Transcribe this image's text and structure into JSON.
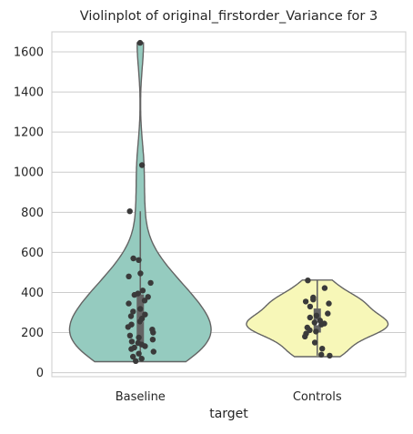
{
  "chart_data": {
    "type": "violin",
    "title": "Violinplot of original_firstorder_Variance for 3",
    "xlabel": "target",
    "ylabel": "",
    "ylim": [
      -20,
      1700
    ],
    "yticks": [
      0,
      200,
      400,
      600,
      800,
      1000,
      1200,
      1400,
      1600
    ],
    "grid": "horizontal",
    "categories": [
      "Baseline",
      "Controls"
    ],
    "series": [
      {
        "category": "Baseline",
        "color": "#95cbbf",
        "points": [
          1645,
          1035,
          805,
          570,
          562,
          495,
          480,
          448,
          410,
          395,
          388,
          378,
          360,
          345,
          318,
          305,
          290,
          282,
          270,
          255,
          240,
          228,
          215,
          200,
          185,
          175,
          165,
          155,
          148,
          140,
          132,
          125,
          118,
          105,
          95,
          80,
          70,
          58
        ],
        "q1": 140,
        "median": 255,
        "q3": 390,
        "whisker_low": 55,
        "whisker_high": 805,
        "min": 55,
        "max": 1645
      },
      {
        "category": "Controls",
        "color": "#f7f7b8",
        "points": [
          460,
          422,
          375,
          365,
          355,
          345,
          330,
          295,
          285,
          275,
          260,
          250,
          245,
          240,
          225,
          212,
          205,
          195,
          180,
          150,
          120,
          90,
          85
        ],
        "q1": 200,
        "median": 250,
        "q3": 320,
        "whisker_low": 85,
        "whisker_high": 460,
        "min": 80,
        "max": 462
      }
    ]
  }
}
